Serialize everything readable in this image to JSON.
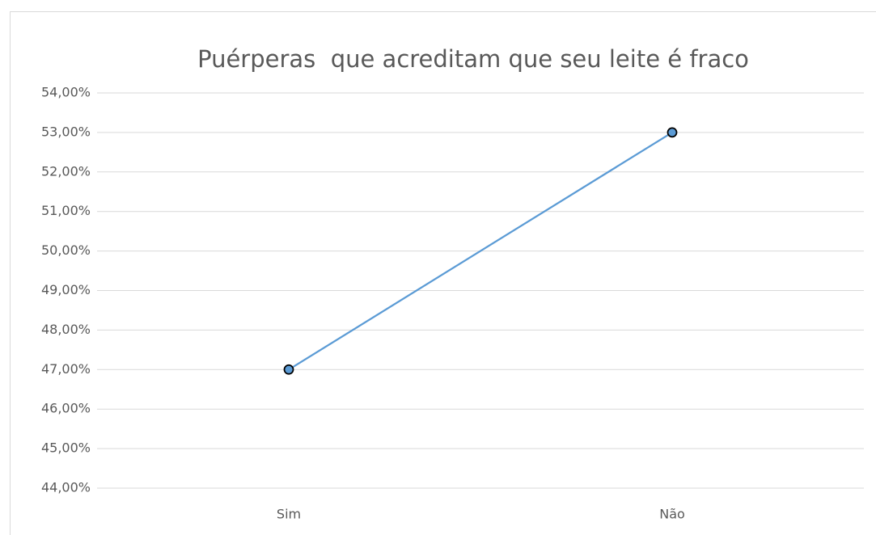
{
  "chart_data": {
    "type": "line",
    "title": "Puérperas  que acreditam que seu leite é fraco",
    "categories": [
      "Sim",
      "Não"
    ],
    "values": [
      47,
      53
    ],
    "color": "#5b9bd5",
    "ylim": [
      44,
      54
    ],
    "yticks": [
      {
        "value": 44,
        "label": "44,00%"
      },
      {
        "value": 45,
        "label": "45,00%"
      },
      {
        "value": 46,
        "label": "46,00%"
      },
      {
        "value": 47,
        "label": "47,00%"
      },
      {
        "value": 48,
        "label": "48,00%"
      },
      {
        "value": 49,
        "label": "49,00%"
      },
      {
        "value": 50,
        "label": "50,00%"
      },
      {
        "value": 51,
        "label": "51,00%"
      },
      {
        "value": 52,
        "label": "52,00%"
      },
      {
        "value": 53,
        "label": "53,00%"
      },
      {
        "value": 54,
        "label": "54,00%"
      }
    ],
    "grid": true
  }
}
